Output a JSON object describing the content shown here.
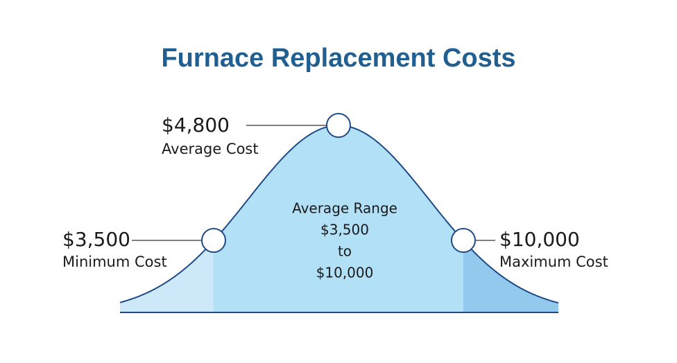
{
  "title": "Furnace Replacement Costs",
  "average": {
    "value": "$4,800",
    "label": "Average Cost"
  },
  "minimum": {
    "value": "$3,500",
    "label": "Minimum Cost"
  },
  "maximum": {
    "value": "$10,000",
    "label": "Maximum Cost"
  },
  "range": {
    "lines": [
      "Average Range",
      "$3,500",
      "to",
      "$10,000"
    ]
  }
}
